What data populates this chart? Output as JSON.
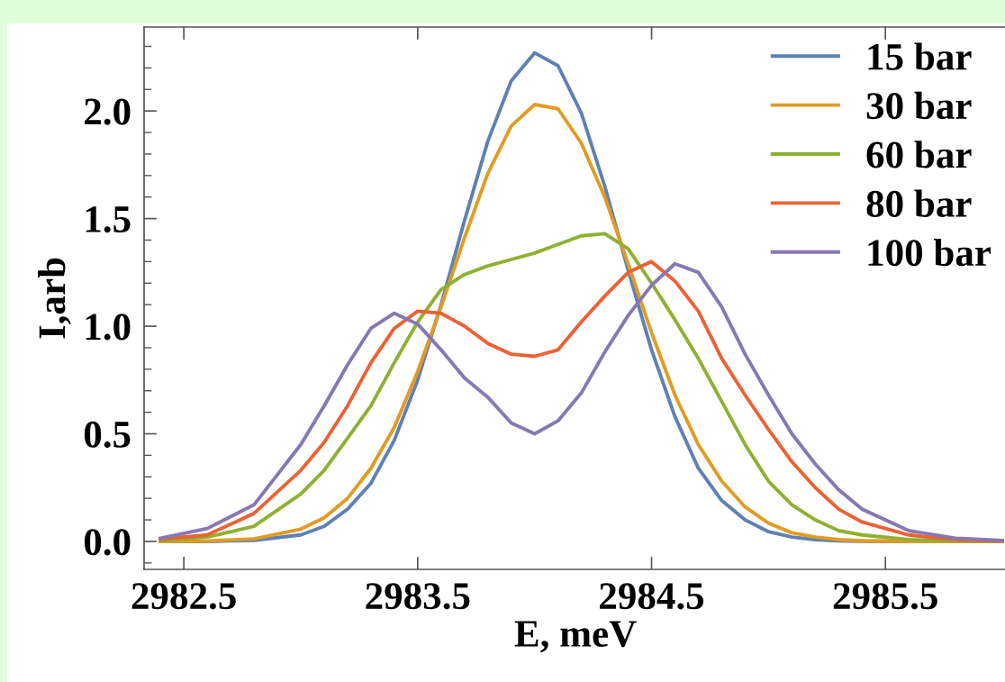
{
  "chart_data": {
    "type": "line",
    "xlabel": "E, meV",
    "ylabel": "I,arb",
    "x": [
      2982.4,
      2982.6,
      2982.8,
      2983.0,
      2983.1,
      2983.2,
      2983.3,
      2983.4,
      2983.5,
      2983.6,
      2983.7,
      2983.8,
      2983.9,
      2984.0,
      2984.1,
      2984.2,
      2984.3,
      2984.4,
      2984.5,
      2984.6,
      2984.7,
      2984.8,
      2984.9,
      2985.0,
      2985.1,
      2985.2,
      2985.3,
      2985.4,
      2985.6,
      2985.8,
      2986.0
    ],
    "series": [
      {
        "name": "15 bar",
        "color": "#5e81b5",
        "values": [
          0,
          0,
          0.005,
          0.03,
          0.07,
          0.15,
          0.27,
          0.47,
          0.75,
          1.1,
          1.49,
          1.86,
          2.14,
          2.27,
          2.21,
          1.99,
          1.65,
          1.26,
          0.89,
          0.58,
          0.34,
          0.19,
          0.1,
          0.045,
          0.02,
          0.008,
          0.003,
          0.001,
          0,
          0,
          0
        ]
      },
      {
        "name": "30 bar",
        "color": "#e19c24",
        "values": [
          0,
          0.002,
          0.012,
          0.057,
          0.11,
          0.2,
          0.34,
          0.53,
          0.79,
          1.09,
          1.41,
          1.71,
          1.93,
          2.03,
          2.01,
          1.85,
          1.6,
          1.29,
          0.97,
          0.68,
          0.45,
          0.28,
          0.16,
          0.085,
          0.04,
          0.02,
          0.008,
          0.003,
          0,
          0,
          0
        ]
      },
      {
        "name": "60 bar",
        "color": "#8fb032",
        "values": [
          0.003,
          0.02,
          0.07,
          0.22,
          0.33,
          0.48,
          0.63,
          0.83,
          1.02,
          1.17,
          1.24,
          1.28,
          1.31,
          1.34,
          1.38,
          1.42,
          1.43,
          1.36,
          1.2,
          1.03,
          0.85,
          0.65,
          0.45,
          0.28,
          0.17,
          0.1,
          0.05,
          0.03,
          0.008,
          0.002,
          0
        ]
      },
      {
        "name": "80 bar",
        "color": "#eb6235",
        "values": [
          0.01,
          0.03,
          0.13,
          0.33,
          0.46,
          0.63,
          0.83,
          0.99,
          1.07,
          1.06,
          1.0,
          0.92,
          0.87,
          0.86,
          0.89,
          1.02,
          1.14,
          1.25,
          1.3,
          1.21,
          1.07,
          0.85,
          0.68,
          0.52,
          0.37,
          0.25,
          0.15,
          0.09,
          0.03,
          0.008,
          0.002
        ]
      },
      {
        "name": "100 bar",
        "color": "#8778b3",
        "values": [
          0.015,
          0.06,
          0.17,
          0.45,
          0.63,
          0.82,
          0.99,
          1.06,
          1.01,
          0.89,
          0.76,
          0.67,
          0.55,
          0.5,
          0.56,
          0.69,
          0.88,
          1.05,
          1.19,
          1.29,
          1.25,
          1.09,
          0.87,
          0.68,
          0.5,
          0.36,
          0.24,
          0.15,
          0.05,
          0.015,
          0.005
        ]
      }
    ],
    "xlim": [
      2982.33,
      2986.02
    ],
    "ylim": [
      -0.13,
      2.39
    ],
    "xticks": [
      {
        "value": 2982.5,
        "label": "2982.5"
      },
      {
        "value": 2983.5,
        "label": "2983.5"
      },
      {
        "value": 2984.5,
        "label": "2984.5"
      },
      {
        "value": 2985.5,
        "label": "2985.5"
      }
    ],
    "yticks": [
      {
        "value": -0.1,
        "label": null
      },
      {
        "value": 0,
        "label": "0.0"
      },
      {
        "value": 0.1,
        "label": null
      },
      {
        "value": 0.2,
        "label": null
      },
      {
        "value": 0.3,
        "label": null
      },
      {
        "value": 0.4,
        "label": null
      },
      {
        "value": 0.5,
        "label": "0.5"
      },
      {
        "value": 0.6,
        "label": null
      },
      {
        "value": 0.7,
        "label": null
      },
      {
        "value": 0.8,
        "label": null
      },
      {
        "value": 0.9,
        "label": null
      },
      {
        "value": 1.0,
        "label": "1.0"
      },
      {
        "value": 1.1,
        "label": null
      },
      {
        "value": 1.2,
        "label": null
      },
      {
        "value": 1.3,
        "label": null
      },
      {
        "value": 1.4,
        "label": null
      },
      {
        "value": 1.5,
        "label": "1.5"
      },
      {
        "value": 1.6,
        "label": null
      },
      {
        "value": 1.7,
        "label": null
      },
      {
        "value": 1.8,
        "label": null
      },
      {
        "value": 1.9,
        "label": null
      },
      {
        "value": 2.0,
        "label": "2.0"
      },
      {
        "value": 2.1,
        "label": null
      },
      {
        "value": 2.2,
        "label": null
      },
      {
        "value": 2.3,
        "label": null
      }
    ],
    "grid": false,
    "legend": "top right",
    "line_style": "solid",
    "marker": "none"
  }
}
